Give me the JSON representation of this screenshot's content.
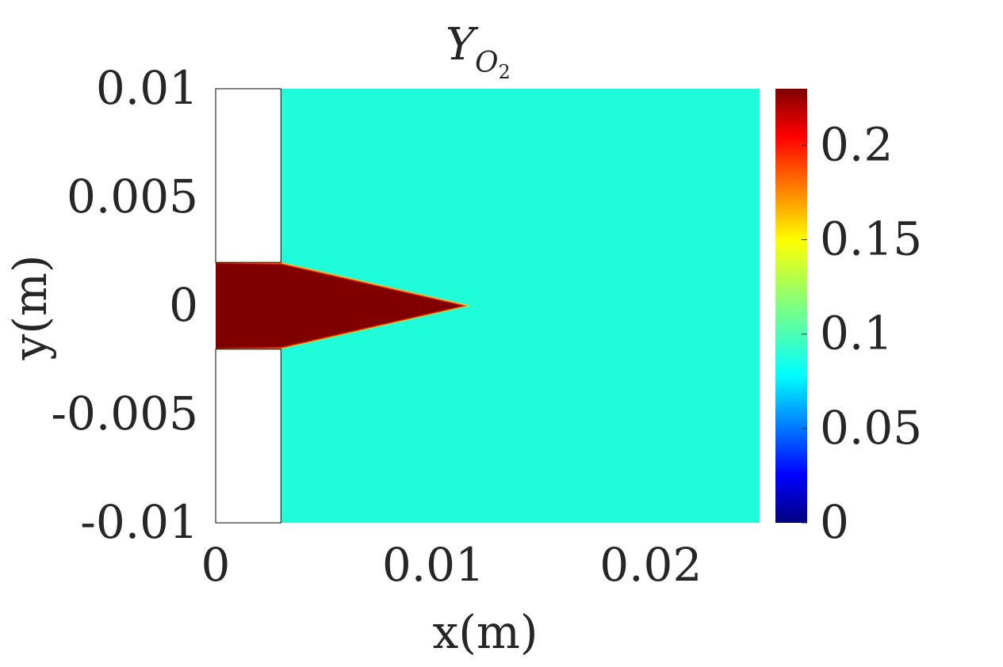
{
  "chart_data": {
    "type": "heatmap",
    "title": {
      "main": "Y",
      "subscript": "O",
      "subsubscript": "2"
    },
    "xlabel": "x(m)",
    "ylabel": "y(m)",
    "xlim": [
      0,
      0.025
    ],
    "ylim": [
      -0.01,
      0.01
    ],
    "x_ticks": [
      {
        "value": 0,
        "label": "0"
      },
      {
        "value": 0.01,
        "label": "0.01"
      },
      {
        "value": 0.02,
        "label": "0.02"
      }
    ],
    "y_ticks": [
      {
        "value": 0.01,
        "label": "0.01"
      },
      {
        "value": 0.005,
        "label": "0.005"
      },
      {
        "value": 0,
        "label": "0"
      },
      {
        "value": -0.005,
        "label": "-0.005"
      },
      {
        "value": -0.01,
        "label": "-0.01"
      }
    ],
    "colormap": "jet",
    "colorbar": {
      "range": [
        0,
        0.23
      ],
      "ticks": [
        {
          "value": 0,
          "label": "0"
        },
        {
          "value": 0.05,
          "label": "0.05"
        },
        {
          "value": 0.1,
          "label": "0.1"
        },
        {
          "value": 0.15,
          "label": "0.15"
        },
        {
          "value": 0.2,
          "label": "0.2"
        }
      ]
    },
    "regions": [
      {
        "kind": "background",
        "value": 0.085,
        "color": "#1efcd9"
      },
      {
        "kind": "solid_wall_top",
        "x": [
          0,
          0.003
        ],
        "y": [
          0.002,
          0.01
        ],
        "color": "#ffffff"
      },
      {
        "kind": "solid_wall_bottom",
        "x": [
          0,
          0.003
        ],
        "y": [
          -0.01,
          -0.002
        ],
        "color": "#ffffff"
      },
      {
        "kind": "inlet_core",
        "inlet_x": [
          0,
          0.003
        ],
        "inlet_halfwidth": 0.002,
        "tip_x": 0.0115,
        "value": 0.23,
        "color": "#800000"
      }
    ]
  }
}
